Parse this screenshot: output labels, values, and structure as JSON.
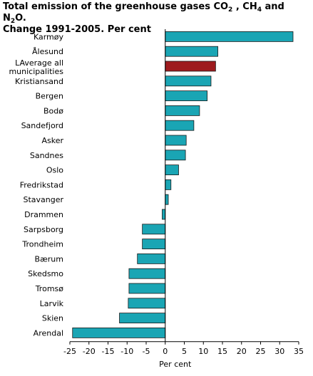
{
  "title": {
    "line1_pre": "Total emission of the greenhouse gases CO",
    "co2_sub": "2",
    "mid1": " , CH",
    "ch4_sub": "4",
    "mid2": " and N",
    "n2o_sub": "2",
    "line1_post": "O.",
    "line2": "Change 1991-2005. Per cent"
  },
  "chart_data": {
    "type": "bar",
    "orientation": "horizontal",
    "title": "Total emission of the greenhouse gases CO2 , CH4 and N2O. Change 1991-2005. Per cent",
    "xlabel": "Per cent",
    "ylabel": "",
    "xlim": [
      -25,
      35
    ],
    "xticks": [
      -25,
      -20,
      -15,
      -10,
      -5,
      0,
      5,
      10,
      15,
      20,
      25,
      30,
      35
    ],
    "grid": false,
    "categories": [
      "Karmøy",
      "Ålesund",
      "LAverage all municipalities",
      "Kristiansand",
      "Bergen",
      "Bodø",
      "Sandefjord",
      "Asker",
      "Sandnes",
      "Oslo",
      "Fredrikstad",
      "Stavanger",
      "Drammen",
      "Sarpsborg",
      "Trondheim",
      "Bærum",
      "Skedsmo",
      "Tromsø",
      "Larvik",
      "Skien",
      "Arendal"
    ],
    "category_label_lines": [
      [
        "Karmøy"
      ],
      [
        "Ålesund"
      ],
      [
        "LAverage all",
        "municipalities"
      ],
      [
        "Kristiansand"
      ],
      [
        "Bergen"
      ],
      [
        "Bodø"
      ],
      [
        "Sandefjord"
      ],
      [
        "Asker"
      ],
      [
        "Sandnes"
      ],
      [
        "Oslo"
      ],
      [
        "Fredrikstad"
      ],
      [
        "Stavanger"
      ],
      [
        "Drammen"
      ],
      [
        "Sarpsborg"
      ],
      [
        "Trondheim"
      ],
      [
        "Bærum"
      ],
      [
        "Skedsmo"
      ],
      [
        "Tromsø"
      ],
      [
        "Larvik"
      ],
      [
        "Skien"
      ],
      [
        "Arendal"
      ]
    ],
    "values": [
      33.5,
      13.8,
      13.2,
      12.0,
      11.0,
      9.0,
      7.5,
      5.5,
      5.3,
      3.5,
      1.5,
      0.8,
      -0.8,
      -6.0,
      -6.0,
      -7.3,
      -9.5,
      -9.5,
      -9.7,
      -12.0,
      -24.3
    ],
    "highlight_index": 2,
    "colors": {
      "bar": "#1aa5b4",
      "highlight": "#9e1b1e",
      "outline": "#1a1a1a",
      "axis": "#000000"
    }
  }
}
